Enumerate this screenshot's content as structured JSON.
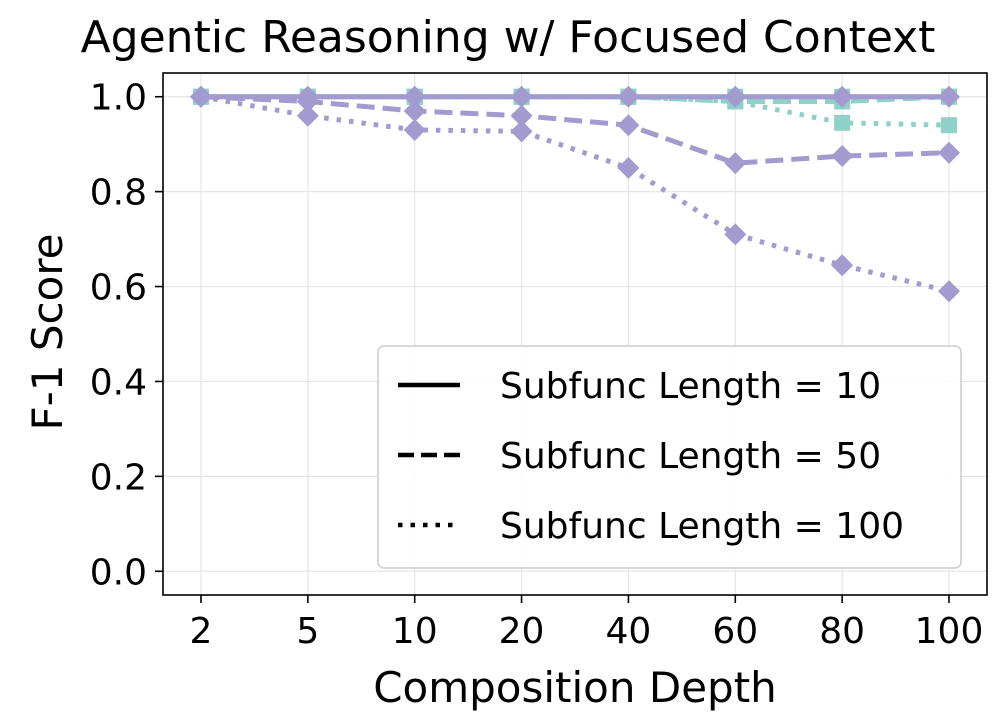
{
  "chart_data": {
    "type": "line",
    "title": "Agentic Reasoning w/ Focused Context",
    "xlabel": "Composition Depth",
    "ylabel": "F-1 Score",
    "categories": [
      "2",
      "5",
      "10",
      "20",
      "40",
      "60",
      "80",
      "100"
    ],
    "ylim": [
      -0.05,
      1.05
    ],
    "yticks": [
      0.0,
      0.2,
      0.4,
      0.6,
      0.8,
      1.0
    ],
    "ytick_labels": [
      "0.0",
      "0.2",
      "0.4",
      "0.6",
      "0.8",
      "1.0"
    ],
    "grid": true,
    "legend_position": "lower-right",
    "legend": [
      {
        "label": "Subfunc Length = 10",
        "style": "solid"
      },
      {
        "label": "Subfunc Length = 50",
        "style": "dashed"
      },
      {
        "label": "Subfunc Length = 100",
        "style": "dotted"
      }
    ],
    "series": [
      {
        "name": "Teal, Subfunc Length = 10",
        "color": "#8fd0c8",
        "marker": "square",
        "style": "solid",
        "values": [
          1.0,
          1.0,
          1.0,
          1.0,
          1.0,
          1.0,
          1.0,
          1.0
        ]
      },
      {
        "name": "Teal, Subfunc Length = 50",
        "color": "#8fd0c8",
        "marker": "square",
        "style": "dashed",
        "values": [
          1.0,
          1.0,
          1.0,
          1.0,
          1.0,
          0.99,
          0.99,
          1.0
        ]
      },
      {
        "name": "Teal, Subfunc Length = 100",
        "color": "#8fd0c8",
        "marker": "square",
        "style": "dotted",
        "values": [
          1.0,
          1.0,
          1.0,
          1.0,
          1.0,
          0.99,
          0.945,
          0.94
        ]
      },
      {
        "name": "Purple, Subfunc Length = 10",
        "color": "#a39bd0",
        "marker": "diamond",
        "style": "solid",
        "values": [
          1.0,
          1.0,
          1.0,
          1.0,
          1.0,
          1.0,
          1.0,
          1.0
        ]
      },
      {
        "name": "Purple, Subfunc Length = 50",
        "color": "#a39bd0",
        "marker": "diamond",
        "style": "dashed",
        "values": [
          1.0,
          0.99,
          0.97,
          0.96,
          0.94,
          0.86,
          0.875,
          0.882
        ]
      },
      {
        "name": "Purple, Subfunc Length = 100",
        "color": "#a39bd0",
        "marker": "diamond",
        "style": "dotted",
        "values": [
          1.0,
          0.96,
          0.93,
          0.927,
          0.85,
          0.71,
          0.645,
          0.59
        ]
      }
    ]
  }
}
